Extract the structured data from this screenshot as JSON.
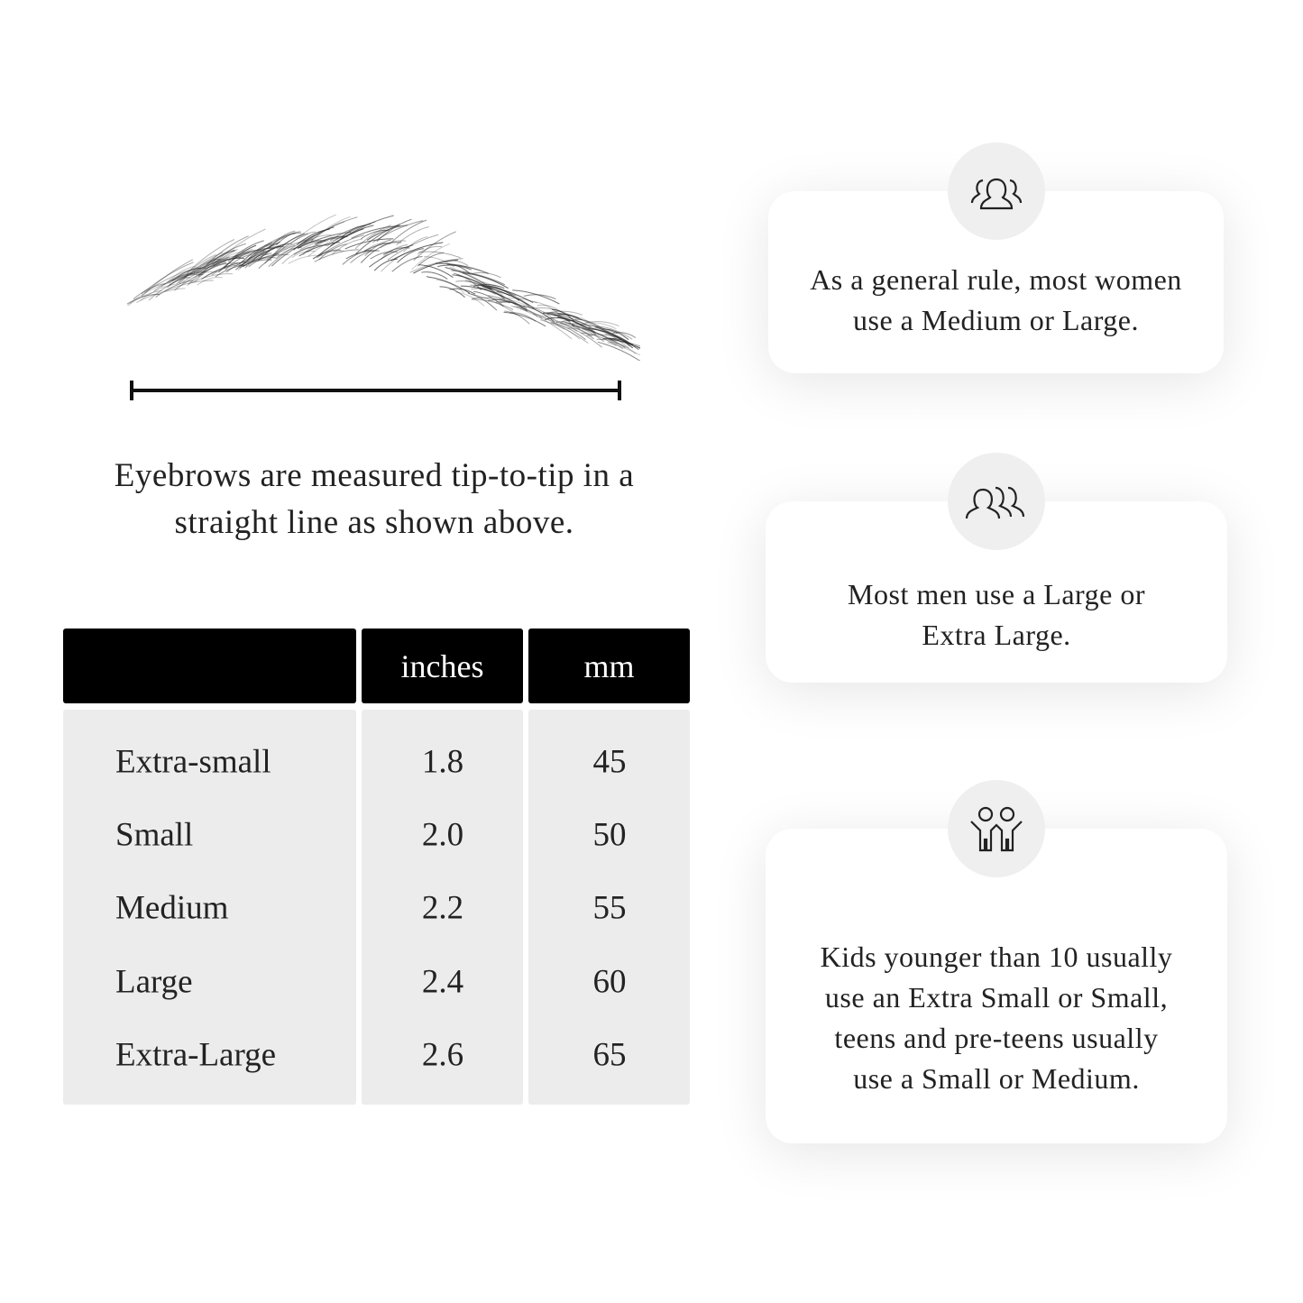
{
  "caption": "Eyebrows are measured tip-to-tip in a straight line as shown above.",
  "table": {
    "headers": [
      "",
      "inches",
      "mm"
    ],
    "rows": [
      {
        "size": "Extra-small",
        "inches": "1.8",
        "mm": "45"
      },
      {
        "size": "Small",
        "inches": "2.0",
        "mm": "50"
      },
      {
        "size": "Medium",
        "inches": "2.2",
        "mm": "55"
      },
      {
        "size": "Large",
        "inches": "2.4",
        "mm": "60"
      },
      {
        "size": "Extra-Large",
        "inches": "2.6",
        "mm": "65"
      }
    ]
  },
  "cards": [
    {
      "icon": "women-group-icon",
      "text": "As a general rule, most women use a Medium or Large."
    },
    {
      "icon": "men-group-icon",
      "text": "Most men use a Large or Extra Large."
    },
    {
      "icon": "kids-icon",
      "text": "Kids younger than 10 usually use an Extra Small or Small, teens and pre-teens usually use a Small or Medium."
    }
  ]
}
